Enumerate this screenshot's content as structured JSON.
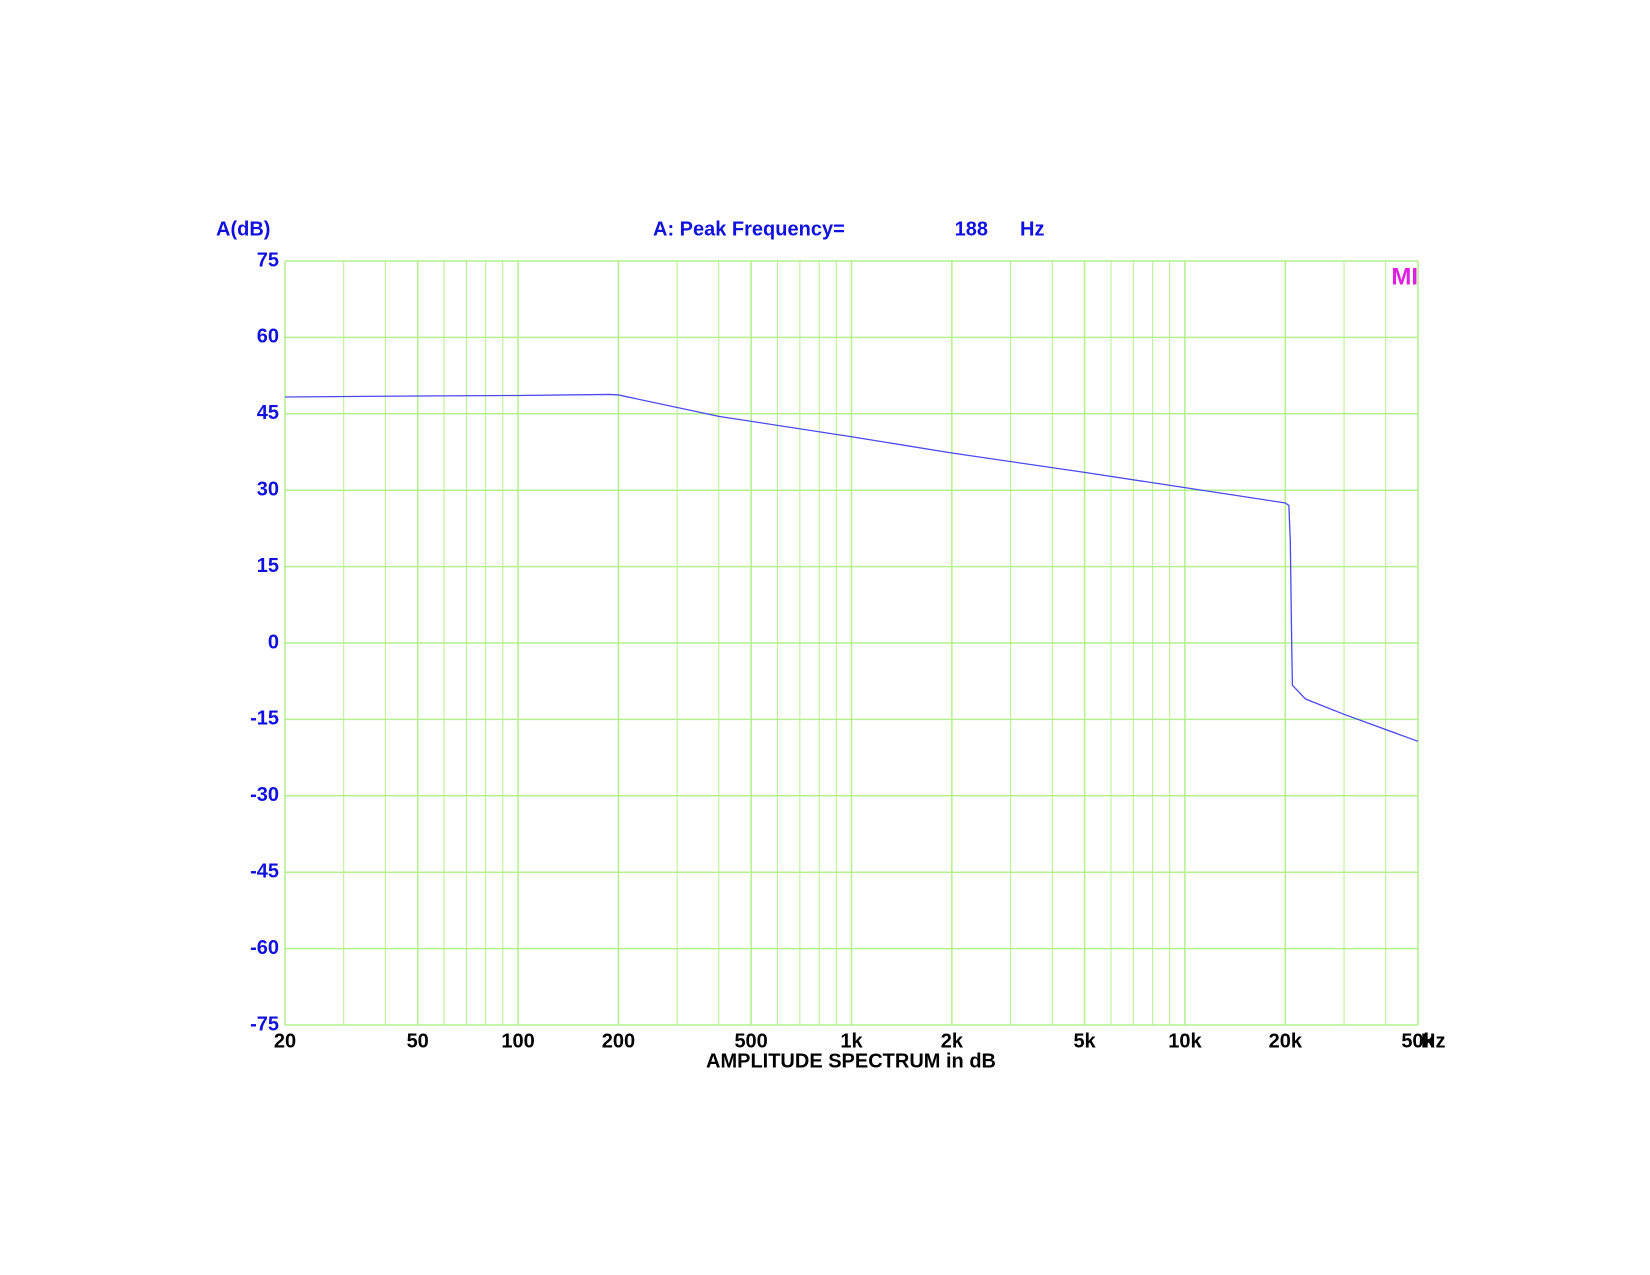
{
  "chart_data": {
    "type": "line",
    "y_label": "A(dB)",
    "annotation": {
      "text": "A: Peak Frequency=",
      "value": 188,
      "unit": "Hz"
    },
    "x_label": "AMPLITUDE SPECTRUM in dB",
    "x_unit": "Hz",
    "logo": "MI",
    "x_scale": "log",
    "grid": true,
    "xlim": [
      20,
      50000
    ],
    "xticks": [
      20,
      50,
      100,
      200,
      500,
      {
        "value": 1000,
        "label": "1k"
      },
      {
        "value": 2000,
        "label": "2k"
      },
      {
        "value": 5000,
        "label": "5k"
      },
      {
        "value": 10000,
        "label": "10k"
      },
      {
        "value": 20000,
        "label": "20k"
      },
      {
        "value": 50000,
        "label": "50k"
      }
    ],
    "ylim": [
      -75,
      75
    ],
    "yticks": [
      -75,
      -60,
      -45,
      -30,
      -15,
      0,
      15,
      30,
      45,
      60,
      75
    ],
    "x": [
      20,
      50,
      100,
      188,
      200,
      400,
      1000,
      2000,
      5000,
      10000,
      20000,
      20500,
      20700,
      20900,
      21000,
      21500,
      23000,
      30000,
      50000
    ],
    "series": [
      {
        "color": "#4a4af0",
        "values": [
          48.3,
          48.5,
          48.6,
          48.8,
          48.7,
          44.5,
          40.5,
          37.3,
          33.5,
          30.5,
          27.5,
          27.0,
          20.0,
          0.0,
          -8.3,
          -9.0,
          -11.0,
          -14.0,
          -19.3
        ]
      }
    ]
  }
}
